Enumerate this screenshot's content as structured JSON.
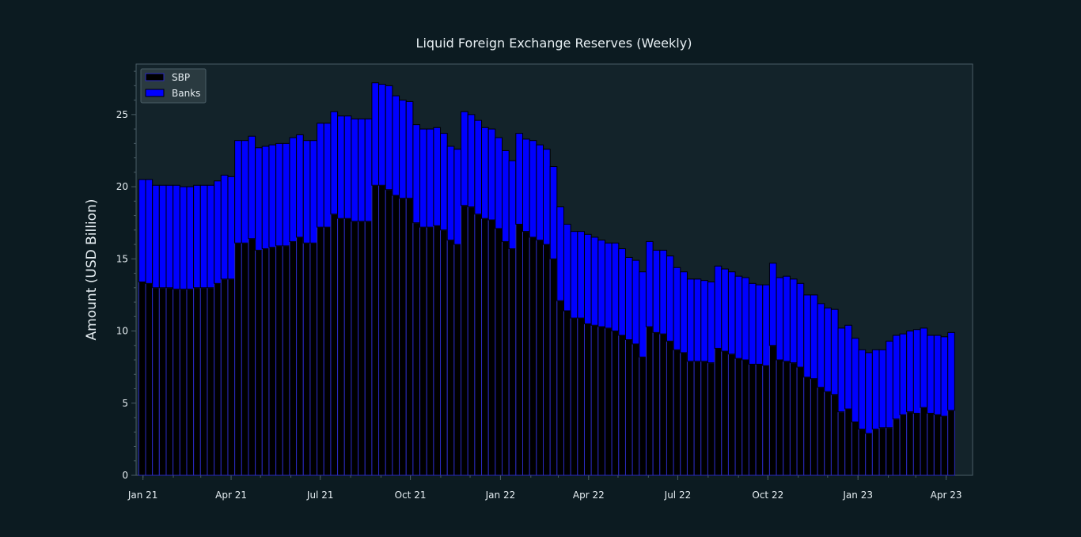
{
  "chart_data": {
    "type": "bar",
    "stacked": true,
    "title": "Liquid Foreign Exchange Reserves (Weekly)",
    "xlabel": "",
    "ylabel": "Amount (USD Billion)",
    "ylim": [
      0,
      28.5
    ],
    "y_ticks": [
      0,
      5,
      10,
      15,
      20,
      25
    ],
    "x_start": "2020-12-25",
    "x_end": "2023-04-28",
    "x_tick_labels": [
      {
        "date": "2021-01-01",
        "label": "Jan 21"
      },
      {
        "date": "2021-04-01",
        "label": "Apr 21"
      },
      {
        "date": "2021-07-01",
        "label": "Jul 21"
      },
      {
        "date": "2021-10-01",
        "label": "Oct 21"
      },
      {
        "date": "2022-01-01",
        "label": "Jan 22"
      },
      {
        "date": "2022-04-01",
        "label": "Apr 22"
      },
      {
        "date": "2022-07-01",
        "label": "Jul 22"
      },
      {
        "date": "2022-10-01",
        "label": "Oct 22"
      },
      {
        "date": "2023-01-01",
        "label": "Jan 23"
      },
      {
        "date": "2023-04-01",
        "label": "Apr 23"
      }
    ],
    "legend": {
      "position": "top-left"
    },
    "series": [
      {
        "name": "SBP",
        "color": "#000000",
        "values": [
          13.4,
          13.3,
          13.0,
          13.0,
          13.0,
          12.9,
          12.9,
          12.9,
          13.0,
          13.0,
          13.0,
          13.3,
          13.6,
          13.6,
          16.1,
          16.1,
          16.4,
          15.6,
          15.7,
          15.8,
          15.9,
          15.9,
          16.2,
          16.5,
          16.1,
          16.1,
          17.2,
          17.2,
          18.1,
          17.8,
          17.8,
          17.6,
          17.6,
          17.6,
          20.1,
          20.1,
          19.8,
          19.4,
          19.2,
          19.2,
          17.5,
          17.2,
          17.2,
          17.3,
          17.0,
          16.3,
          16.0,
          18.7,
          18.6,
          18.1,
          17.8,
          17.7,
          17.1,
          16.2,
          15.7,
          17.4,
          16.9,
          16.5,
          16.3,
          16.0,
          15.0,
          12.1,
          11.4,
          10.9,
          10.9,
          10.5,
          10.4,
          10.3,
          10.2,
          10.0,
          9.7,
          9.4,
          9.1,
          8.2,
          10.3,
          9.9,
          9.8,
          9.3,
          8.7,
          8.5,
          7.9,
          7.9,
          7.9,
          7.8,
          8.8,
          8.6,
          8.4,
          8.1,
          8.0,
          7.7,
          7.7,
          7.6,
          9.0,
          8.0,
          7.9,
          7.8,
          7.5,
          6.8,
          6.7,
          6.1,
          5.8,
          5.6,
          4.4,
          4.6,
          3.7,
          3.2,
          2.9,
          3.2,
          3.3,
          3.3,
          3.9,
          4.2,
          4.4,
          4.3,
          4.7,
          4.3,
          4.2,
          4.1,
          4.5
        ]
      },
      {
        "name": "Banks",
        "color": "#0000ff",
        "values": [
          7.1,
          7.2,
          7.1,
          7.1,
          7.1,
          7.2,
          7.1,
          7.1,
          7.1,
          7.1,
          7.1,
          7.1,
          7.2,
          7.1,
          7.1,
          7.1,
          7.1,
          7.1,
          7.1,
          7.1,
          7.1,
          7.1,
          7.2,
          7.1,
          7.1,
          7.1,
          7.2,
          7.2,
          7.1,
          7.1,
          7.1,
          7.1,
          7.1,
          7.1,
          7.1,
          7.0,
          7.2,
          6.9,
          6.8,
          6.7,
          6.8,
          6.8,
          6.8,
          6.8,
          6.7,
          6.5,
          6.6,
          6.5,
          6.4,
          6.5,
          6.3,
          6.3,
          6.3,
          6.3,
          6.1,
          6.3,
          6.4,
          6.7,
          6.6,
          6.6,
          6.4,
          6.5,
          6.0,
          6.0,
          6.0,
          6.2,
          6.1,
          6.0,
          5.9,
          6.1,
          6.0,
          5.7,
          5.8,
          5.9,
          5.9,
          5.7,
          5.8,
          5.9,
          5.7,
          5.6,
          5.7,
          5.7,
          5.6,
          5.6,
          5.7,
          5.7,
          5.7,
          5.7,
          5.7,
          5.6,
          5.5,
          5.6,
          5.7,
          5.7,
          5.9,
          5.8,
          5.8,
          5.7,
          5.8,
          5.8,
          5.8,
          5.9,
          5.8,
          5.8,
          5.8,
          5.5,
          5.6,
          5.5,
          5.4,
          6.0,
          5.8,
          5.6,
          5.6,
          5.8,
          5.5,
          5.4,
          5.5,
          5.5,
          5.4
        ]
      }
    ]
  },
  "colors": {
    "background": "#0c1b21",
    "plot_background": "#13232a",
    "axis_spine": "#4a5d66",
    "text": "#e6eef2",
    "bar_edge_sbp": "#2a2ac0",
    "bar_edge_banks": "#000000",
    "legend_background": "#2a3a40"
  }
}
